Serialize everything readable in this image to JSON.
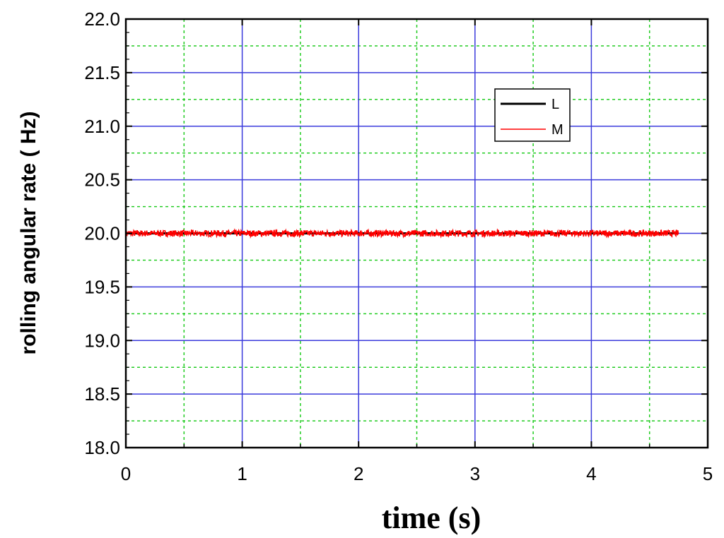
{
  "chart_data": {
    "type": "line",
    "title": "",
    "xlabel": "time (s)",
    "ylabel": "rolling angular rate ( Hz)",
    "xlim": [
      0,
      5
    ],
    "ylim": [
      18.0,
      22.0
    ],
    "x_ticks": [
      "0",
      "1",
      "2",
      "3",
      "4",
      "5"
    ],
    "y_ticks": [
      "18.0",
      "18.5",
      "19.0",
      "19.5",
      "20.0",
      "20.5",
      "21.0",
      "21.5",
      "22.0"
    ],
    "grid": true,
    "legend_position": "top-right",
    "series": [
      {
        "name": "L",
        "color": "#000000",
        "x": [
          0.0,
          4.75
        ],
        "y": [
          20.0,
          20.0
        ]
      },
      {
        "name": "M",
        "color": "#ff0000",
        "x": [
          0.0,
          4.75
        ],
        "y": [
          20.0,
          20.0
        ],
        "noise_amplitude": 0.03
      }
    ],
    "colors": {
      "major_grid": "#3b3bdc",
      "minor_grid": "#22cc22"
    }
  }
}
